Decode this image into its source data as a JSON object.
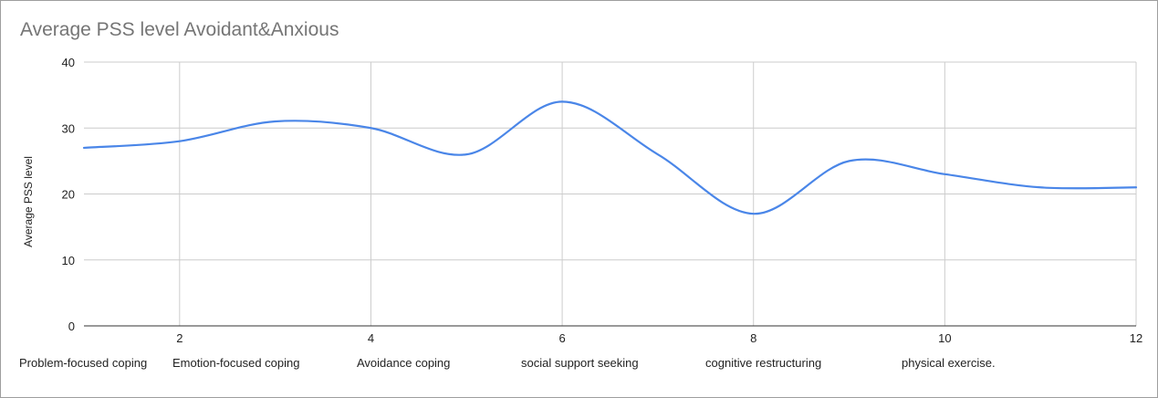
{
  "chart_data": {
    "type": "line",
    "title": "Average PSS level Avoidant&Anxious",
    "xlabel": "",
    "ylabel": "Average PSS level",
    "x": [
      1,
      2,
      3,
      4,
      5,
      6,
      7,
      8,
      9,
      10,
      11,
      12
    ],
    "series": [
      {
        "values": [
          27,
          28,
          31,
          30,
          26,
          34,
          26,
          17,
          25,
          23,
          21,
          21
        ],
        "color": "#4a86e8"
      }
    ],
    "xlim": [
      1,
      12
    ],
    "ylim": [
      0,
      40
    ],
    "xticks": [
      2,
      4,
      6,
      8,
      10,
      12
    ],
    "yticks": [
      0,
      10,
      20,
      30,
      40
    ],
    "grid": true,
    "smooth": true,
    "legend": "none",
    "bottom_labels": [
      "Problem-focused coping",
      "Emotion-focused coping",
      "Avoidance coping",
      "social support seeking",
      "cognitive restructuring",
      "physical exercise."
    ]
  }
}
